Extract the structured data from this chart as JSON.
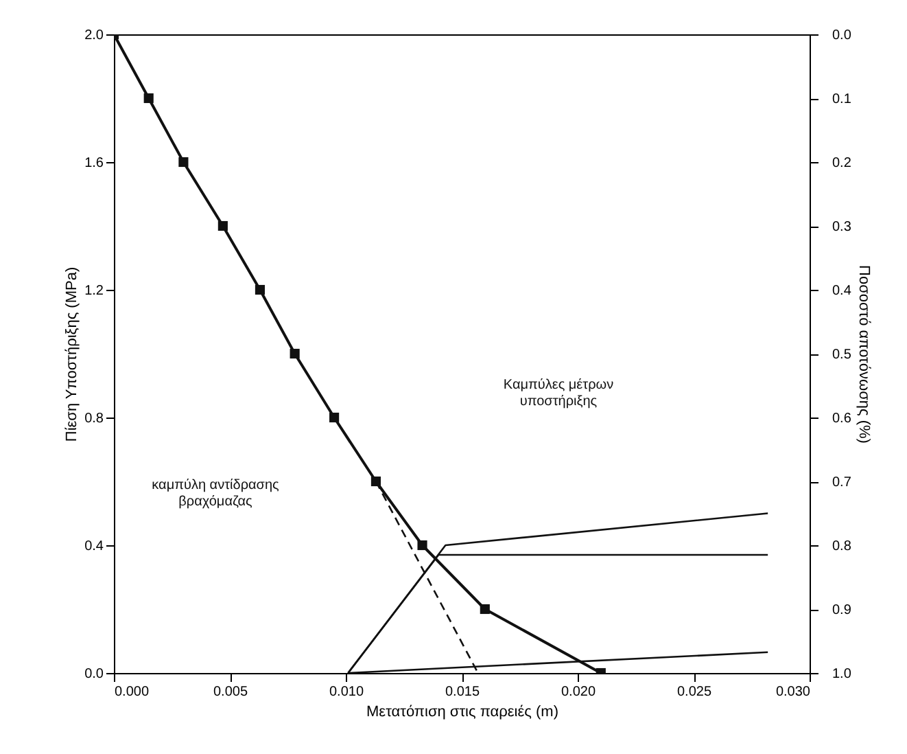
{
  "chart_data": {
    "type": "line",
    "xlabel": "Μετατόπιση στις παρειές (m)",
    "ylabel": "Πίεση Υποστήριξης (MPa)",
    "y2label": "Ποσοστό αποτόνωσης (%)",
    "xlim": [
      0,
      0.03
    ],
    "xticks": [
      {
        "value": 0,
        "label": "0.000"
      },
      {
        "value": 0.005,
        "label": "0.005"
      },
      {
        "value": 0.01,
        "label": "0.010"
      },
      {
        "value": 0.015,
        "label": "0.015"
      },
      {
        "value": 0.02,
        "label": "0.020"
      },
      {
        "value": 0.025,
        "label": "0.025"
      },
      {
        "value": 0.03,
        "label": "0.030"
      }
    ],
    "ylim": [
      0,
      2
    ],
    "yticks": [
      {
        "value": 0,
        "label": "0.0"
      },
      {
        "value": 0.4,
        "label": "0.4"
      },
      {
        "value": 0.8,
        "label": "0.8"
      },
      {
        "value": 1.2,
        "label": "1.2"
      },
      {
        "value": 1.6,
        "label": "1.6"
      },
      {
        "value": 2,
        "label": "2.0"
      }
    ],
    "y2lim": [
      1,
      0
    ],
    "y2ticks": [
      {
        "value": 0,
        "label": "0.0"
      },
      {
        "value": 0.1,
        "label": "0.1"
      },
      {
        "value": 0.2,
        "label": "0.2"
      },
      {
        "value": 0.3,
        "label": "0.3"
      },
      {
        "value": 0.4,
        "label": "0.4"
      },
      {
        "value": 0.5,
        "label": "0.5"
      },
      {
        "value": 0.6,
        "label": "0.6"
      },
      {
        "value": 0.7,
        "label": "0.7"
      },
      {
        "value": 0.8,
        "label": "0.8"
      },
      {
        "value": 0.9,
        "label": "0.9"
      },
      {
        "value": 1,
        "label": "1.0"
      }
    ],
    "grid": false,
    "series": [
      {
        "color": "#111111",
        "marker": "square",
        "line_style": "solid",
        "x": [
          0,
          0.0015,
          0.003,
          0.0047,
          0.0063,
          0.0078,
          0.0095,
          0.0113,
          0.0133,
          0.016,
          0.021
        ],
        "values": [
          2.0,
          1.8,
          1.6,
          1.4,
          1.2,
          1.0,
          0.8,
          0.6,
          0.4,
          0.2,
          0.0
        ]
      },
      {
        "color": "#111111",
        "marker": "none",
        "line_style": "dashed",
        "x": [
          0.0113,
          0.0157
        ],
        "values": [
          0.6,
          0.0
        ]
      },
      {
        "color": "#111111",
        "marker": "none",
        "line_style": "solid",
        "x": [
          0.0101,
          0.014,
          0.0282
        ],
        "values": [
          0.0,
          0.37,
          0.37
        ]
      },
      {
        "color": "#111111",
        "marker": "none",
        "line_style": "solid",
        "x": [
          0.0101,
          0.0143,
          0.0282
        ],
        "values": [
          0.0,
          0.4,
          0.5
        ]
      },
      {
        "color": "#111111",
        "marker": "none",
        "line_style": "solid",
        "x": [
          0.0101,
          0.0282
        ],
        "values": [
          0.0,
          0.065
        ]
      }
    ],
    "annotations": [
      "καμπύλη αντίδρασης\nβραχόμαζας",
      "Καμπύλες μέτρων\nυποστήριξης"
    ]
  }
}
